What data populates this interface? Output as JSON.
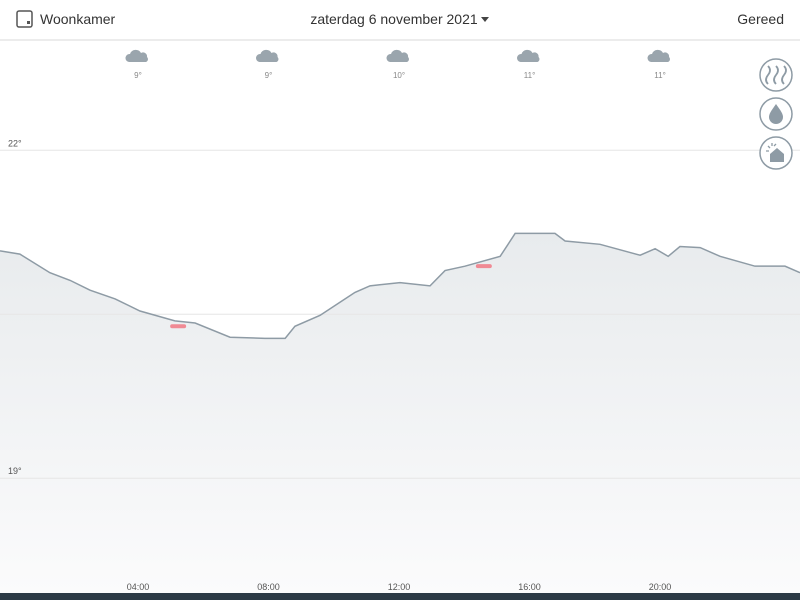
{
  "header": {
    "room": "Woonkamer",
    "date": "zaterdag 6 november 2021",
    "done": "Gereed"
  },
  "weather": [
    "9°",
    "9°",
    "10°",
    "11°",
    "11°"
  ],
  "chart_data": {
    "type": "area",
    "x": [
      -0.23,
      0.38,
      1.3,
      1.92,
      2.53,
      3.3,
      4.06,
      5.13,
      5.75,
      6.82,
      7.89,
      8.51,
      8.81,
      9.58,
      10.19,
      10.65,
      11.11,
      12.03,
      12.95,
      13.41,
      14.02,
      15.1,
      15.56,
      16.78,
      17.09,
      18.16,
      19.39,
      19.85,
      20.25,
      20.61,
      21.23,
      21.84,
      22.91,
      23.83,
      24.29
    ],
    "values": [
      21.08,
      21.05,
      20.88,
      20.81,
      20.72,
      20.64,
      20.53,
      20.44,
      20.42,
      20.29,
      20.28,
      20.28,
      20.39,
      20.49,
      20.61,
      20.7,
      20.76,
      20.79,
      20.76,
      20.9,
      20.94,
      21.03,
      21.24,
      21.24,
      21.17,
      21.14,
      21.04,
      21.1,
      21.03,
      21.12,
      21.11,
      21.03,
      20.94,
      20.94,
      20.88
    ],
    "color": "#8e9ba5",
    "setpoints": {
      "color": "#f08a94",
      "x": [
        5.23,
        14.6
      ],
      "values": [
        20.39,
        20.94
      ]
    },
    "xlim": [
      -0.23,
      24.29
    ],
    "ylim": [
      17.95,
      23.0
    ],
    "xticks": [
      {
        "value": 4,
        "label": "04:00"
      },
      {
        "value": 8,
        "label": "08:00"
      },
      {
        "value": 12,
        "label": "12:00"
      },
      {
        "value": 16,
        "label": "16:00"
      },
      {
        "value": 20,
        "label": "20:00"
      }
    ],
    "yticks": [
      {
        "value": 19,
        "label": "19°"
      },
      {
        "value": 20.5,
        "label": null
      },
      {
        "value": 22,
        "label": "22°"
      }
    ],
    "grid": true
  }
}
